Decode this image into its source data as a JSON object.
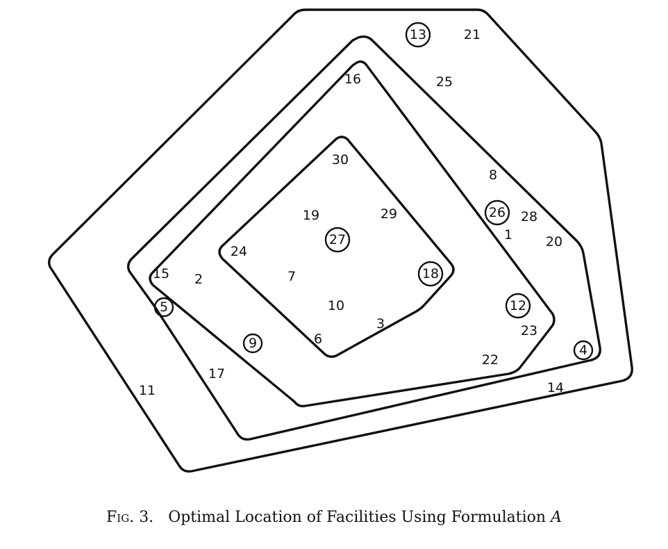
{
  "figure": {
    "nodes": [
      {
        "label": "13",
        "facility": true
      },
      {
        "label": "21",
        "facility": false
      },
      {
        "label": "25",
        "facility": false
      },
      {
        "label": "16",
        "facility": false
      },
      {
        "label": "30",
        "facility": false
      },
      {
        "label": "8",
        "facility": false
      },
      {
        "label": "26",
        "facility": true
      },
      {
        "label": "28",
        "facility": false
      },
      {
        "label": "1",
        "facility": false
      },
      {
        "label": "20",
        "facility": false
      },
      {
        "label": "19",
        "facility": false
      },
      {
        "label": "29",
        "facility": false
      },
      {
        "label": "27",
        "facility": true
      },
      {
        "label": "24",
        "facility": false
      },
      {
        "label": "15",
        "facility": false
      },
      {
        "label": "2",
        "facility": false
      },
      {
        "label": "7",
        "facility": false
      },
      {
        "label": "18",
        "facility": true
      },
      {
        "label": "5",
        "facility": true
      },
      {
        "label": "10",
        "facility": false
      },
      {
        "label": "12",
        "facility": true
      },
      {
        "label": "3",
        "facility": false
      },
      {
        "label": "6",
        "facility": false
      },
      {
        "label": "23",
        "facility": false
      },
      {
        "label": "9",
        "facility": true
      },
      {
        "label": "4",
        "facility": true
      },
      {
        "label": "22",
        "facility": false
      },
      {
        "label": "17",
        "facility": false
      },
      {
        "label": "11",
        "facility": false
      },
      {
        "label": "14",
        "facility": false
      }
    ]
  },
  "caption": {
    "prefix": "Fig. 3.",
    "text": "Optimal Location of Facilities Using Formulation",
    "formulation": "A"
  }
}
